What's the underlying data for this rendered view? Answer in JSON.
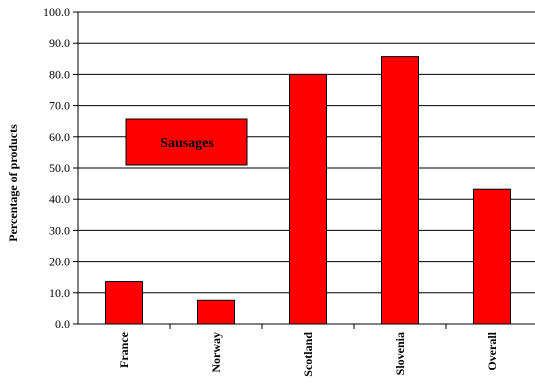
{
  "chart_data": {
    "type": "bar",
    "categories": [
      "France",
      "Norway",
      "Scotland",
      "Slovenia",
      "Overall"
    ],
    "values": [
      13.6,
      7.6,
      80.0,
      85.7,
      43.2
    ],
    "ylabel": "Percentage of products",
    "xlabel": "",
    "ylim": [
      0,
      100
    ],
    "yticks": [
      "0.0",
      "10.0",
      "20.0",
      "30.0",
      "40.0",
      "50.0",
      "60.0",
      "70.0",
      "80.0",
      "90.0",
      "100.0"
    ],
    "grid": true,
    "annotation": "Sausages",
    "bar_color": "#ff0000",
    "annotation_fill": "#ff0000"
  }
}
